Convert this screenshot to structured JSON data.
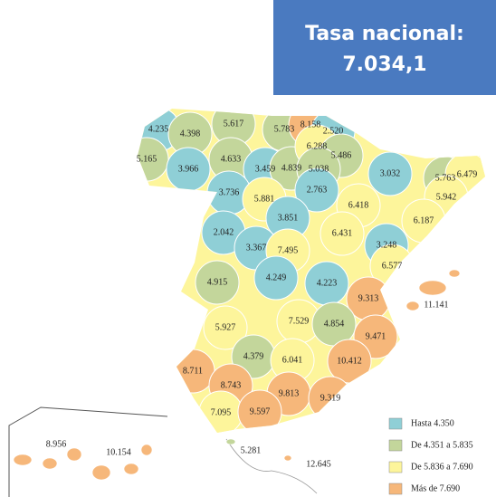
{
  "header": {
    "title": "Tasa nacional:",
    "value": "7.034,1"
  },
  "legend": [
    {
      "label": "Hasta 4.350",
      "color": "#8fcfd6"
    },
    {
      "label": "De 4.351 a 5.835",
      "color": "#c3d69b"
    },
    {
      "label": "De 5.836 a 7.690",
      "color": "#fdf59b"
    },
    {
      "label": "Más de 7.690",
      "color": "#f6b77a"
    }
  ],
  "provinces": [
    {
      "label": "4.235",
      "color": "#8fcfd6"
    },
    {
      "label": "4.398",
      "color": "#c3d69b"
    },
    {
      "label": "5.617",
      "color": "#c3d69b"
    },
    {
      "label": "5.783",
      "color": "#c3d69b"
    },
    {
      "label": "8.158",
      "color": "#f6b77a"
    },
    {
      "label": "2.520",
      "color": "#8fcfd6"
    },
    {
      "label": "5.165",
      "color": "#c3d69b"
    },
    {
      "label": "3.966",
      "color": "#8fcfd6"
    },
    {
      "label": "4.633",
      "color": "#c3d69b"
    },
    {
      "label": "3.459",
      "color": "#8fcfd6"
    },
    {
      "label": "4.839",
      "color": "#c3d69b"
    },
    {
      "label": "6.288",
      "color": "#fdf59b"
    },
    {
      "label": "5.486",
      "color": "#c3d69b"
    },
    {
      "label": "5.038",
      "color": "#c3d69b"
    },
    {
      "label": "3.032",
      "color": "#8fcfd6"
    },
    {
      "label": "5.763",
      "color": "#c3d69b"
    },
    {
      "label": "6.479",
      "color": "#fdf59b"
    },
    {
      "label": "3.736",
      "color": "#8fcfd6"
    },
    {
      "label": "5.881",
      "color": "#fdf59b"
    },
    {
      "label": "2.763",
      "color": "#8fcfd6"
    },
    {
      "label": "6.418",
      "color": "#fdf59b"
    },
    {
      "label": "5.942",
      "color": "#fdf59b"
    },
    {
      "label": "6.187",
      "color": "#fdf59b"
    },
    {
      "label": "3.851",
      "color": "#8fcfd6"
    },
    {
      "label": "6.431",
      "color": "#fdf59b"
    },
    {
      "label": "2.042",
      "color": "#8fcfd6"
    },
    {
      "label": "3.367",
      "color": "#8fcfd6"
    },
    {
      "label": "7.495",
      "color": "#fdf59b"
    },
    {
      "label": "3.248",
      "color": "#8fcfd6"
    },
    {
      "label": "6.577",
      "color": "#fdf59b"
    },
    {
      "label": "4.915",
      "color": "#c3d69b"
    },
    {
      "label": "4.249",
      "color": "#8fcfd6"
    },
    {
      "label": "4.223",
      "color": "#8fcfd6"
    },
    {
      "label": "9.313",
      "color": "#f6b77a"
    },
    {
      "label": "11.141",
      "color": "#f6b77a"
    },
    {
      "label": "5.927",
      "color": "#fdf59b"
    },
    {
      "label": "7.529",
      "color": "#fdf59b"
    },
    {
      "label": "4.854",
      "color": "#c3d69b"
    },
    {
      "label": "9.471",
      "color": "#f6b77a"
    },
    {
      "label": "4.379",
      "color": "#c3d69b"
    },
    {
      "label": "6.041",
      "color": "#fdf59b"
    },
    {
      "label": "10.412",
      "color": "#f6b77a"
    },
    {
      "label": "8.711",
      "color": "#f6b77a"
    },
    {
      "label": "8.743",
      "color": "#f6b77a"
    },
    {
      "label": "9.813",
      "color": "#f6b77a"
    },
    {
      "label": "9.319",
      "color": "#f6b77a"
    },
    {
      "label": "7.095",
      "color": "#fdf59b"
    },
    {
      "label": "9.597",
      "color": "#f6b77a"
    },
    {
      "label": "8.956",
      "color": "#f6b77a"
    },
    {
      "label": "10.154",
      "color": "#f6b77a"
    },
    {
      "label": "5.281",
      "color": "#c3d69b"
    },
    {
      "label": "12.645",
      "color": "#f6b77a"
    }
  ]
}
